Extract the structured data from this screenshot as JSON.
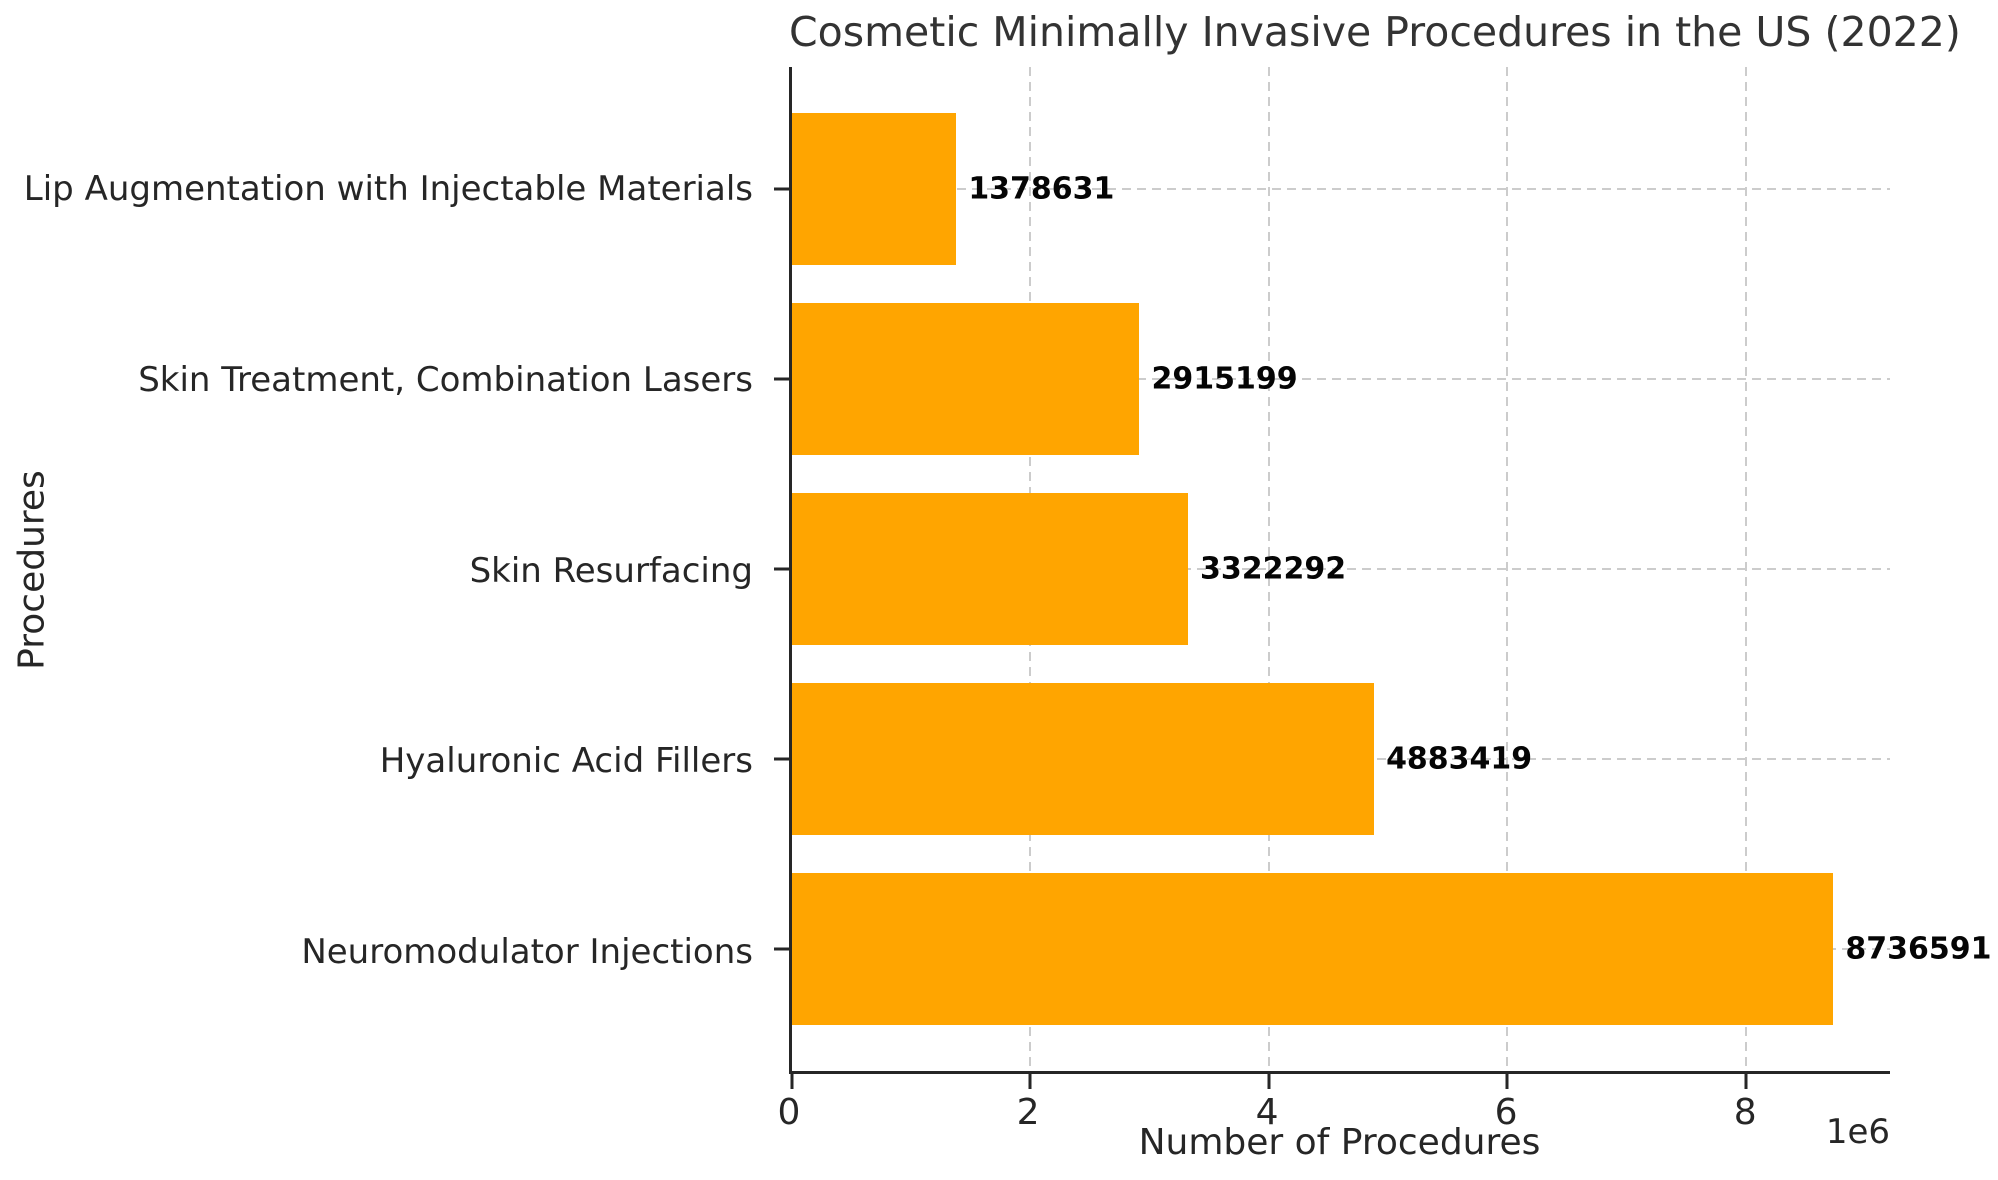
{
  "chart_data": {
    "type": "bar",
    "orientation": "horizontal",
    "title": "Cosmetic Minimally Invasive Procedures in the US (2022)",
    "xlabel": "Number of Procedures",
    "ylabel": "Procedures",
    "offset_text": "1e6",
    "categories": [
      "Lip Augmentation with Injectable Materials",
      "Skin Treatment, Combination Lasers",
      "Skin Resurfacing",
      "Hyaluronic Acid Fillers",
      "Neuromodulator Injections"
    ],
    "values": [
      1378631,
      2915199,
      3322292,
      4883419,
      8736591
    ],
    "bar_labels": [
      "1378631",
      "2915199",
      "3322292",
      "4883419",
      "8736591"
    ],
    "xticks": [
      0,
      2,
      4,
      6,
      8
    ],
    "xtick_labels": [
      "0",
      "2",
      "4",
      "6",
      "8"
    ],
    "xtick_scale": 1000000,
    "xlim": [
      0,
      9212000
    ],
    "ylim_units": [
      -0.64,
      4.64
    ],
    "bar_thickness_units": 0.8,
    "bar_color": "#ffa500",
    "grid": "dashed-both-axes",
    "legend": "none",
    "colors": {
      "bar": "#ffa500",
      "grid": "#cccccc",
      "spine": "#262626",
      "text": "#262626",
      "title_text": "#333333",
      "value_label_text": "#050505",
      "background": "#ffffff"
    }
  }
}
